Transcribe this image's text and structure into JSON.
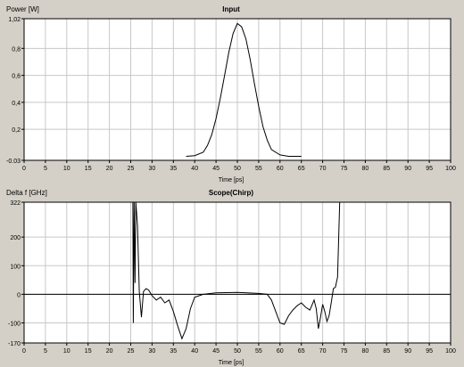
{
  "chart_data": [
    {
      "type": "line",
      "title": "Input",
      "ylabel": "Power [W]",
      "xlabel": "Time [ps]",
      "xlim": [
        0,
        100
      ],
      "ylim": [
        -0.03,
        1.02
      ],
      "xticks": [
        0,
        5,
        10,
        15,
        20,
        25,
        30,
        35,
        40,
        45,
        50,
        55,
        60,
        65,
        70,
        75,
        80,
        85,
        90,
        95,
        100
      ],
      "yticks": [
        -0.03,
        0.2,
        0.4,
        0.6,
        0.8,
        1.02
      ],
      "ytick_labels": [
        "-0.03",
        "0,2",
        "0,4",
        "0,6",
        "0,8",
        "1,02"
      ],
      "grid": true,
      "series": [
        {
          "color": "#000000",
          "x": [
            38,
            40,
            42,
            43,
            44,
            45,
            46,
            47,
            48,
            49,
            50,
            51,
            52,
            53,
            54,
            55,
            56,
            57,
            58,
            60,
            62,
            65
          ],
          "y": [
            0.0,
            0.005,
            0.03,
            0.08,
            0.16,
            0.28,
            0.43,
            0.6,
            0.77,
            0.91,
            0.985,
            0.96,
            0.87,
            0.72,
            0.54,
            0.37,
            0.22,
            0.12,
            0.05,
            0.01,
            0.0,
            0.0
          ]
        }
      ]
    },
    {
      "type": "line",
      "title": "Scope(Chirp)",
      "ylabel": "Delta f [GHz]",
      "xlabel": "Time [ps]",
      "xlim": [
        0,
        100
      ],
      "ylim": [
        -170,
        322
      ],
      "xticks": [
        0,
        5,
        10,
        15,
        20,
        25,
        30,
        35,
        40,
        45,
        50,
        55,
        60,
        65,
        70,
        75,
        80,
        85,
        90,
        95,
        100
      ],
      "yticks": [
        -170,
        -100,
        0,
        100,
        200,
        322
      ],
      "ytick_labels": [
        "-170",
        "-100",
        "0",
        "100",
        "200",
        "322"
      ],
      "grid": true,
      "zero_line": true,
      "series": [
        {
          "color": "#000000",
          "x": [
            25.5,
            25.6,
            25.8,
            26.0,
            26.2,
            26.6,
            27.0,
            27.5,
            28,
            28.6,
            29.2,
            30,
            31,
            32,
            33,
            34,
            35,
            36,
            37,
            38,
            39,
            40,
            42,
            45,
            50,
            55,
            57,
            58,
            59,
            60,
            61,
            62,
            63,
            64,
            65,
            66,
            67,
            68,
            68.5,
            69,
            69.5,
            70,
            70.5,
            71,
            71.5,
            72,
            72.5,
            73,
            73.5,
            74,
            74.5
          ],
          "y": [
            322,
            -100,
            322,
            40,
            322,
            240,
            10,
            -80,
            10,
            20,
            15,
            -5,
            -20,
            -10,
            -30,
            -20,
            -60,
            -110,
            -155,
            -120,
            -50,
            -10,
            0,
            5,
            7,
            3,
            0,
            -20,
            -60,
            -100,
            -105,
            -75,
            -55,
            -40,
            -30,
            -45,
            -55,
            -20,
            -50,
            -120,
            -80,
            -35,
            -60,
            -95,
            -75,
            -30,
            20,
            25,
            60,
            322,
            322
          ]
        }
      ]
    }
  ]
}
